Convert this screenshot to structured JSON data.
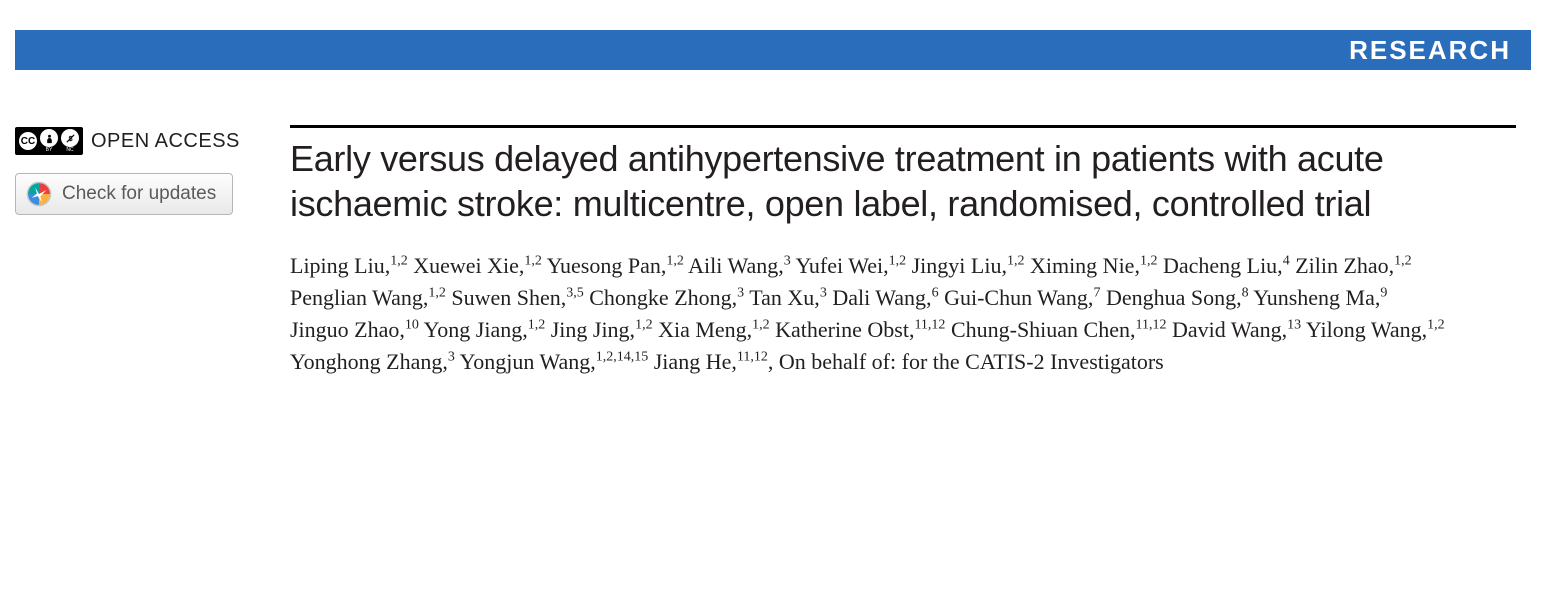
{
  "banner": {
    "label": "RESEARCH",
    "bg_color": "#2a6ebb",
    "text_color": "#ffffff"
  },
  "open_access": {
    "label": "OPEN ACCESS"
  },
  "check_updates": {
    "label": "Check for updates"
  },
  "title": "Early versus delayed antihypertensive treatment in patients with acute ischaemic stroke: multicentre, open label, randomised, controlled trial",
  "authors": [
    {
      "name": "Liping Liu",
      "aff": "1,2"
    },
    {
      "name": "Xuewei Xie",
      "aff": "1,2"
    },
    {
      "name": "Yuesong Pan",
      "aff": "1,2"
    },
    {
      "name": "Aili Wang",
      "aff": "3"
    },
    {
      "name": "Yufei Wei",
      "aff": "1,2"
    },
    {
      "name": "Jingyi Liu",
      "aff": "1,2"
    },
    {
      "name": "Ximing Nie",
      "aff": "1,2"
    },
    {
      "name": "Dacheng Liu",
      "aff": "4"
    },
    {
      "name": "Zilin Zhao",
      "aff": "1,2"
    },
    {
      "name": "Penglian Wang",
      "aff": "1,2"
    },
    {
      "name": "Suwen Shen",
      "aff": "3,5"
    },
    {
      "name": "Chongke Zhong",
      "aff": "3"
    },
    {
      "name": "Tan Xu",
      "aff": "3"
    },
    {
      "name": "Dali Wang",
      "aff": "6"
    },
    {
      "name": "Gui-Chun Wang",
      "aff": "7"
    },
    {
      "name": "Denghua Song",
      "aff": "8"
    },
    {
      "name": "Yunsheng Ma",
      "aff": "9"
    },
    {
      "name": "Jinguo Zhao",
      "aff": "10"
    },
    {
      "name": "Yong Jiang",
      "aff": "1,2"
    },
    {
      "name": "Jing Jing",
      "aff": "1,2"
    },
    {
      "name": "Xia Meng",
      "aff": "1,2"
    },
    {
      "name": "Katherine Obst",
      "aff": "11,12"
    },
    {
      "name": "Chung-Shiuan Chen",
      "aff": "11,12"
    },
    {
      "name": "David Wang",
      "aff": "13"
    },
    {
      "name": "Yilong Wang",
      "aff": "1,2"
    },
    {
      "name": "Yonghong Zhang",
      "aff": "3"
    },
    {
      "name": "Yongjun Wang",
      "aff": "1,2,14,15"
    },
    {
      "name": "Jiang He",
      "aff": "11,12"
    }
  ],
  "on_behalf": "On behalf of: for the CATIS-2 Investigators",
  "colors": {
    "rule": "#000000",
    "text": "#231f20",
    "btn_border": "#b7b7b7",
    "btn_text": "#5a5a5a"
  }
}
